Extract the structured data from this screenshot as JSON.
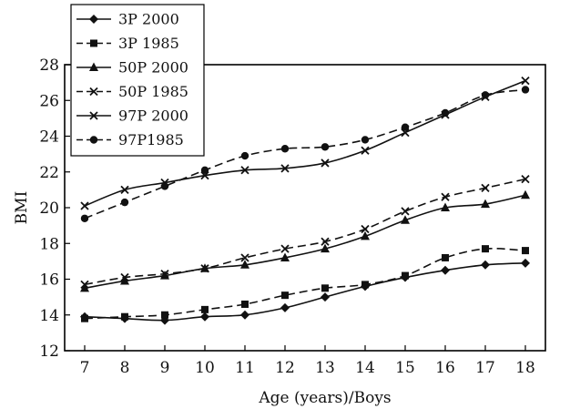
{
  "chart_data": {
    "type": "line",
    "title": "",
    "xlabel": "Age (years)/Boys",
    "ylabel": "BMI",
    "x": [
      7,
      8,
      9,
      10,
      11,
      12,
      13,
      14,
      15,
      16,
      17,
      18
    ],
    "xlim": [
      6.5,
      18.5
    ],
    "ylim": [
      12,
      28
    ],
    "yticks": [
      12,
      14,
      16,
      18,
      20,
      22,
      24,
      26,
      28
    ],
    "grid": false,
    "legend_position": "top-left",
    "series": [
      {
        "name": "3P 2000",
        "marker": "diamond",
        "dashed": false,
        "values": [
          13.9,
          13.8,
          13.7,
          13.9,
          14.0,
          14.4,
          15.0,
          15.6,
          16.1,
          16.5,
          16.8,
          16.9
        ]
      },
      {
        "name": "3P 1985",
        "marker": "square",
        "dashed": true,
        "values": [
          13.8,
          13.9,
          14.0,
          14.3,
          14.6,
          15.1,
          15.5,
          15.7,
          16.2,
          17.2,
          17.7,
          17.6
        ]
      },
      {
        "name": "50P 2000",
        "marker": "triangle",
        "dashed": false,
        "values": [
          15.5,
          15.9,
          16.2,
          16.6,
          16.8,
          17.2,
          17.7,
          18.4,
          19.3,
          20.0,
          20.2,
          20.7
        ]
      },
      {
        "name": "50P 1985",
        "marker": "x",
        "dashed": true,
        "values": [
          15.7,
          16.1,
          16.3,
          16.6,
          17.2,
          17.7,
          18.1,
          18.8,
          19.8,
          20.6,
          21.1,
          21.6
        ]
      },
      {
        "name": "97P 2000",
        "marker": "x",
        "dashed": false,
        "values": [
          20.1,
          21.0,
          21.4,
          21.8,
          22.1,
          22.2,
          22.5,
          23.2,
          24.2,
          25.2,
          26.2,
          27.1
        ]
      },
      {
        "name": "97P1985",
        "marker": "circle",
        "dashed": true,
        "values": [
          19.4,
          20.3,
          21.2,
          22.1,
          22.9,
          23.3,
          23.4,
          23.8,
          24.5,
          25.3,
          26.3,
          26.6
        ]
      }
    ]
  }
}
